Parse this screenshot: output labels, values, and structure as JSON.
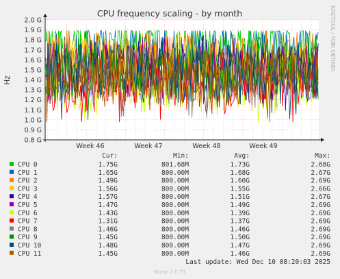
{
  "chart_data": {
    "type": "line",
    "title": "CPU frequency scaling - by month",
    "ylabel": "Hz",
    "side_label": "RRDTOOL / TOBI OETIKER",
    "footer": "Munin 2.0.73",
    "last_update": "Last update: Wed Dec 10 08:20:03 2025",
    "ylim": [
      0.8,
      2.0
    ],
    "y_ticks": [
      0.8,
      0.9,
      1.0,
      1.1,
      1.2,
      1.3,
      1.4,
      1.5,
      1.6,
      1.7,
      1.8,
      1.9,
      2.0
    ],
    "y_tick_labels": [
      "0.8 G",
      "0.9 G",
      "1.0 G",
      "1.1 G",
      "1.2 G",
      "1.3 G",
      "1.4 G",
      "1.5 G",
      "1.6 G",
      "1.7 G",
      "1.8 G",
      "1.9 G",
      "2.0 G"
    ],
    "x_ticks": [
      "Week 46",
      "Week 47",
      "Week 48",
      "Week 49"
    ],
    "grid": true,
    "legend_headers": [
      "Cur:",
      "Min:",
      "Avg:",
      "Max:"
    ],
    "series": [
      {
        "name": "CPU 0",
        "color": "#00cc00",
        "cur": "1.75G",
        "min": "801.68M",
        "avg": "1.73G",
        "max": "2.68G",
        "cur_v": 1.75,
        "min_v": 0.80168,
        "avg_v": 1.73,
        "max_v": 2.68
      },
      {
        "name": "CPU 1",
        "color": "#0066b3",
        "cur": "1.65G",
        "min": "800.00M",
        "avg": "1.68G",
        "max": "2.67G",
        "cur_v": 1.65,
        "min_v": 0.8,
        "avg_v": 1.68,
        "max_v": 2.67
      },
      {
        "name": "CPU 2",
        "color": "#ff8000",
        "cur": "1.49G",
        "min": "800.00M",
        "avg": "1.60G",
        "max": "2.69G",
        "cur_v": 1.49,
        "min_v": 0.8,
        "avg_v": 1.6,
        "max_v": 2.69
      },
      {
        "name": "CPU 3",
        "color": "#ffcc00",
        "cur": "1.56G",
        "min": "800.00M",
        "avg": "1.55G",
        "max": "2.66G",
        "cur_v": 1.56,
        "min_v": 0.8,
        "avg_v": 1.55,
        "max_v": 2.66
      },
      {
        "name": "CPU 4",
        "color": "#330099",
        "cur": "1.57G",
        "min": "800.00M",
        "avg": "1.51G",
        "max": "2.67G",
        "cur_v": 1.57,
        "min_v": 0.8,
        "avg_v": 1.51,
        "max_v": 2.67
      },
      {
        "name": "CPU 5",
        "color": "#990099",
        "cur": "1.47G",
        "min": "800.00M",
        "avg": "1.49G",
        "max": "2.69G",
        "cur_v": 1.47,
        "min_v": 0.8,
        "avg_v": 1.49,
        "max_v": 2.69
      },
      {
        "name": "CPU 6",
        "color": "#ccff00",
        "cur": "1.43G",
        "min": "800.00M",
        "avg": "1.39G",
        "max": "2.69G",
        "cur_v": 1.43,
        "min_v": 0.8,
        "avg_v": 1.39,
        "max_v": 2.69
      },
      {
        "name": "CPU 7",
        "color": "#ff0000",
        "cur": "1.31G",
        "min": "800.00M",
        "avg": "1.37G",
        "max": "2.69G",
        "cur_v": 1.31,
        "min_v": 0.8,
        "avg_v": 1.37,
        "max_v": 2.69
      },
      {
        "name": "CPU 8",
        "color": "#808080",
        "cur": "1.46G",
        "min": "800.00M",
        "avg": "1.46G",
        "max": "2.69G",
        "cur_v": 1.46,
        "min_v": 0.8,
        "avg_v": 1.46,
        "max_v": 2.69
      },
      {
        "name": "CPU 9",
        "color": "#008f00",
        "cur": "1.45G",
        "min": "800.00M",
        "avg": "1.50G",
        "max": "2.69G",
        "cur_v": 1.45,
        "min_v": 0.8,
        "avg_v": 1.5,
        "max_v": 2.69
      },
      {
        "name": "CPU 10",
        "color": "#00487d",
        "cur": "1.48G",
        "min": "800.00M",
        "avg": "1.47G",
        "max": "2.69G",
        "cur_v": 1.48,
        "min_v": 0.8,
        "avg_v": 1.47,
        "max_v": 2.69
      },
      {
        "name": "CPU 11",
        "color": "#b35a00",
        "cur": "1.45G",
        "min": "800.00M",
        "avg": "1.46G",
        "max": "2.69G",
        "cur_v": 1.45,
        "min_v": 0.8,
        "avg_v": 1.46,
        "max_v": 2.69
      }
    ]
  }
}
